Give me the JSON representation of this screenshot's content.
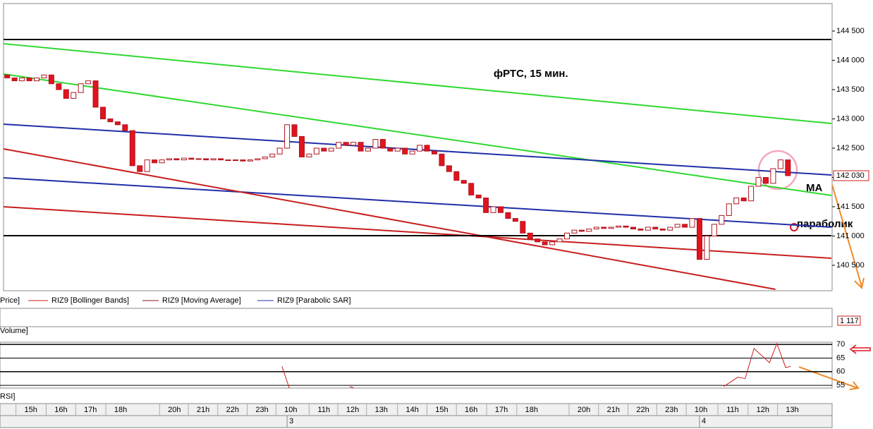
{
  "chart_data": {
    "type": "candlestick",
    "title": "фРТС,  15 мин.",
    "annotations": [
      "MA",
      "параболик"
    ],
    "legend": [
      "Price]",
      "RIZ9 [Bollinger Bands]",
      "RIZ9 [Moving Average]",
      "RIZ9 [Parabolic SAR]"
    ],
    "up_color": "#ffffff",
    "down_color": "#e0141e",
    "edge_color": "#b0141e",
    "xlim": [
      -0.5,
      112
    ],
    "ylim": [
      140066,
      144970
    ],
    "yticks": [
      {
        "value": 140500,
        "label": "140 500"
      },
      {
        "value": 141000,
        "label": "141 000"
      },
      {
        "value": 141500,
        "label": "141 500"
      },
      {
        "value": 142000,
        "label": "142 000"
      },
      {
        "value": 142500,
        "label": "142 500"
      },
      {
        "value": 143000,
        "label": "143 000"
      },
      {
        "value": 143500,
        "label": "143 500"
      },
      {
        "value": 144000,
        "label": "144 000"
      },
      {
        "value": 144500,
        "label": "144 500"
      }
    ],
    "last_price": {
      "value": 142030,
      "label": "142 030"
    },
    "xticks": [
      {
        "value": 3.2,
        "label": "15h"
      },
      {
        "value": 7.3,
        "label": "16h"
      },
      {
        "value": 11.3,
        "label": "17h"
      },
      {
        "value": 15.4,
        "label": "18h"
      },
      {
        "value": 22.7,
        "label": "20h"
      },
      {
        "value": 26.6,
        "label": "21h"
      },
      {
        "value": 30.6,
        "label": "22h"
      },
      {
        "value": 34.6,
        "label": "23h"
      },
      {
        "value": 38.5,
        "label": "10h"
      },
      {
        "value": 43,
        "label": "11h"
      },
      {
        "value": 46.9,
        "label": "12h"
      },
      {
        "value": 50.8,
        "label": "13h"
      },
      {
        "value": 55,
        "label": "14h"
      },
      {
        "value": 59,
        "label": "15h"
      },
      {
        "value": 63,
        "label": "16h"
      },
      {
        "value": 67.1,
        "label": "17h"
      },
      {
        "value": 71.2,
        "label": "18h"
      },
      {
        "value": 78.3,
        "label": "20h"
      },
      {
        "value": 82.3,
        "label": "21h"
      },
      {
        "value": 86.3,
        "label": "22h"
      },
      {
        "value": 90.2,
        "label": "23h"
      },
      {
        "value": 94.2,
        "label": "10h"
      },
      {
        "value": 98.5,
        "label": "11h"
      },
      {
        "value": 102.6,
        "label": "12h"
      },
      {
        "value": 106.6,
        "label": "13h"
      }
    ],
    "date_ticks": [
      {
        "value": 38,
        "label": "3"
      },
      {
        "value": 94,
        "label": "4"
      }
    ],
    "open": [
      143750,
      143700,
      143650,
      143700,
      143650,
      143700,
      143750,
      143600,
      143500,
      143350,
      143450,
      143600,
      143650,
      143200,
      143000,
      142950,
      142900,
      142800,
      142200,
      142100,
      142300,
      142250,
      142300,
      142320,
      142300,
      142330,
      142310,
      142320,
      142300,
      142320,
      142300,
      142290,
      142300,
      142280,
      142300,
      142320,
      142350,
      142400,
      142500,
      142900,
      142700,
      142350,
      142400,
      142500,
      142450,
      142500,
      142600,
      142550,
      142600,
      142450,
      142500,
      142650,
      142500,
      142450,
      142500,
      142400,
      142450,
      142550,
      142450,
      142400,
      142200,
      142100,
      141950,
      141900,
      141700,
      141650,
      141400,
      141500,
      141400,
      141300,
      141250,
      141050,
      140950,
      140900,
      140850,
      140900,
      140950,
      141050,
      141100,
      141080,
      141120,
      141150,
      141130,
      141150,
      141170,
      141150,
      141120,
      141100,
      141150,
      141120,
      141100,
      141150,
      141200,
      141150,
      141300,
      140600,
      141000,
      141200,
      141350,
      141550,
      141650,
      141600,
      141850,
      142000,
      141900,
      142150,
      142300
    ],
    "close": [
      143700,
      143650,
      143700,
      143650,
      143700,
      143750,
      143600,
      143500,
      143350,
      143450,
      143600,
      143650,
      143200,
      143000,
      142950,
      142900,
      142800,
      142200,
      142100,
      142300,
      142250,
      142300,
      142320,
      142300,
      142330,
      142310,
      142320,
      142300,
      142320,
      142300,
      142290,
      142300,
      142280,
      142300,
      142320,
      142350,
      142400,
      142500,
      142900,
      142700,
      142350,
      142400,
      142500,
      142450,
      142500,
      142600,
      142550,
      142600,
      142450,
      142500,
      142650,
      142500,
      142450,
      142500,
      142400,
      142450,
      142550,
      142450,
      142400,
      142200,
      142100,
      141950,
      141900,
      141700,
      141650,
      141400,
      141500,
      141400,
      141300,
      141250,
      141050,
      140950,
      140900,
      140850,
      140900,
      140950,
      141050,
      141100,
      141080,
      141120,
      141150,
      141130,
      141150,
      141170,
      141150,
      141120,
      141100,
      141150,
      141120,
      141100,
      141150,
      141200,
      141150,
      141300,
      140600,
      141000,
      141200,
      141350,
      141550,
      141650,
      141600,
      141850,
      142000,
      141900,
      142150,
      142300,
      142030
    ],
    "lines": [
      {
        "color": "#2ed82e",
        "x": [
          -0.5,
          111.9
        ],
        "values": [
          144284,
          142922
        ]
      },
      {
        "color": "#2ed82e",
        "x": [
          -0.5,
          111.9
        ],
        "values": [
          143766,
          141693
        ]
      },
      {
        "color": "#1f2fa8",
        "x": [
          -0.5,
          111.9
        ],
        "values": [
          142910,
          142042
        ]
      },
      {
        "color": "#1f2fa8",
        "x": [
          -0.5,
          111.9
        ],
        "values": [
          141994,
          141151
        ]
      },
      {
        "color": "#c81e1e",
        "x": [
          -0.5,
          104.3
        ],
        "values": [
          142488,
          140090
        ]
      },
      {
        "color": "#c81e1e",
        "x": [
          -0.5,
          111.9
        ],
        "values": [
          141500,
          140620
        ]
      },
      {
        "color": "#000000",
        "x": [
          -0.5,
          111.9
        ],
        "values": [
          144356,
          144356
        ]
      },
      {
        "color": "#000000",
        "x": [
          -0.5,
          111.9
        ],
        "values": [
          141006,
          141006
        ]
      }
    ],
    "volume_label": {
      "value": 1117,
      "label": "1 117"
    },
    "rsi": {
      "color": "#c81e1e",
      "ylim": [
        54,
        70.8
      ],
      "yticks": [
        55,
        60,
        65,
        70
      ],
      "x": [
        37.3,
        38.3,
        null,
        46.5,
        47,
        null,
        97.3,
        99.2,
        100.2,
        101.4,
        103.5,
        104.5,
        105.7,
        106.4
      ],
      "values": [
        62,
        54,
        null,
        54.6,
        54.1,
        null,
        54.6,
        58,
        57.5,
        68.5,
        63.3,
        70.3,
        61.5,
        62
      ]
    }
  }
}
